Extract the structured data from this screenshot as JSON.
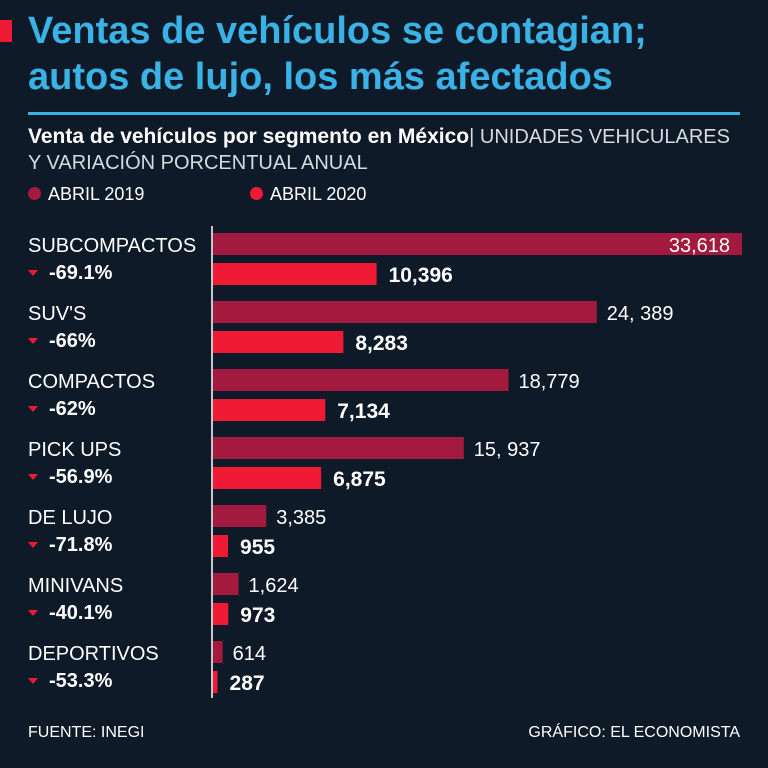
{
  "headline": "Ventas de vehículos se contagian; autos de lujo, los más afectados",
  "subtitle_bold": "Venta de vehículos por segmento en México",
  "subtitle_light": "| UNIDADES VEHICULARES Y VARIACIÓN PORCENTUAL ANUAL",
  "legend": [
    {
      "label": "ABRIL 2019",
      "color": "#a31a3e"
    },
    {
      "label": "ABRIL 2020",
      "color": "#f01a35"
    }
  ],
  "chart_data": {
    "type": "bar",
    "orientation": "horizontal",
    "title": "Venta de vehículos por segmento en México",
    "categories": [
      "SUBCOMPACTOS",
      "SUV'S",
      "COMPACTOS",
      "PICK UPS",
      "DE LUJO",
      "MINIVANS",
      "DEPORTIVOS"
    ],
    "changes": [
      "-69.1%",
      "-66%",
      "-62%",
      "-56.9%",
      "-71.8%",
      "-40.1%",
      "-53.3%"
    ],
    "series": [
      {
        "name": "ABRIL 2019",
        "color": "#a31a3e",
        "values": [
          33618,
          24389,
          18779,
          15937,
          3385,
          1624,
          614
        ],
        "labels": [
          "33,618",
          "24, 389",
          "18,779",
          "15, 937",
          "3,385",
          "1,624",
          "614"
        ]
      },
      {
        "name": "ABRIL 2020",
        "color": "#f01a35",
        "values": [
          10396,
          8283,
          7134,
          6875,
          955,
          973,
          287
        ],
        "labels": [
          "10,396",
          "8,283",
          "7,134",
          "6,875",
          "955",
          "973",
          "287"
        ]
      }
    ],
    "xlim": [
      0,
      33618
    ]
  },
  "footer": {
    "source": "FUENTE: INEGI",
    "credit": "GRÁFICO: EL ECONOMISTA"
  }
}
